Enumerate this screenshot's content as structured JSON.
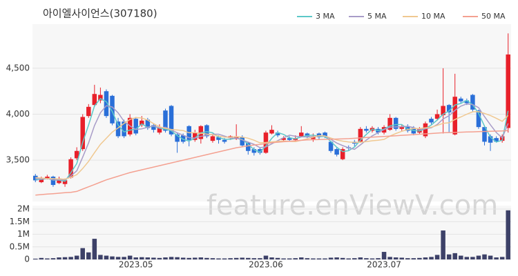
{
  "watermark": "feature.enViewV.com",
  "chart_data": [
    {
      "type": "candlestick",
      "title": "아이엘사이언스(307180)",
      "legend": "top-right",
      "up_color": "#e8202a",
      "down_color": "#2a6fd8",
      "categories": [
        null,
        null,
        null,
        null,
        null,
        null,
        null,
        null,
        null,
        null,
        null,
        null,
        null,
        null,
        null,
        null,
        null,
        "2023.05",
        null,
        null,
        null,
        null,
        null,
        null,
        null,
        null,
        null,
        null,
        null,
        null,
        null,
        null,
        null,
        null,
        null,
        null,
        null,
        null,
        null,
        "2023.06",
        null,
        null,
        null,
        null,
        null,
        null,
        null,
        null,
        null,
        null,
        null,
        null,
        null,
        null,
        null,
        null,
        null,
        null,
        null,
        "2023.07",
        null,
        null,
        null,
        null,
        null,
        null,
        null,
        null,
        null,
        null,
        null,
        null,
        null,
        null,
        null,
        null,
        null,
        null,
        null,
        null,
        null
      ],
      "open": [
        3330,
        3260,
        3300,
        3320,
        3250,
        3240,
        3310,
        3520,
        3620,
        3980,
        4100,
        4150,
        4250,
        4200,
        3920,
        3920,
        3780,
        3950,
        3880,
        3940,
        3880,
        3800,
        4040,
        4090,
        3780,
        3770,
        3870,
        3720,
        3730,
        3880,
        3710,
        3750,
        3720,
        3740,
        3730,
        3750,
        3690,
        3620,
        3620,
        3580,
        3790,
        3800,
        3720,
        3740,
        3720,
        3760,
        3790,
        3730,
        3790,
        3800,
        3700,
        3620,
        3510,
        3640,
        3700,
        3700,
        3840,
        3820,
        3840,
        3800,
        3830,
        3960,
        3840,
        3870,
        3850,
        3800,
        3760,
        3950,
        3950,
        3990,
        4100,
        3780,
        4170,
        4150,
        4210,
        4040,
        3860,
        3760,
        3740,
        3710,
        3850
      ],
      "high": [
        3350,
        3320,
        3340,
        3330,
        3320,
        3300,
        3530,
        3640,
        4000,
        4110,
        4320,
        4290,
        4270,
        4210,
        3960,
        3940,
        4000,
        3970,
        3980,
        3960,
        3900,
        3890,
        4060,
        4100,
        3800,
        3790,
        3880,
        3830,
        3880,
        3890,
        3780,
        3770,
        3740,
        3770,
        3890,
        3770,
        3700,
        3640,
        3640,
        3820,
        3880,
        3820,
        3760,
        3760,
        3770,
        3870,
        3800,
        3790,
        3800,
        3810,
        3710,
        3640,
        3640,
        3660,
        3720,
        3860,
        3870,
        3870,
        3860,
        3880,
        4000,
        3970,
        3880,
        3890,
        3870,
        3860,
        3920,
        3970,
        4050,
        4500,
        4110,
        4440,
        4190,
        4170,
        4220,
        4050,
        3880,
        3780,
        3760,
        3780,
        4880
      ],
      "low": [
        3260,
        3250,
        3290,
        3210,
        3240,
        3210,
        3300,
        3500,
        3600,
        3960,
        4080,
        4120,
        3960,
        3880,
        3740,
        3740,
        3760,
        3770,
        3860,
        3830,
        3800,
        3780,
        3800,
        3760,
        3580,
        3680,
        3650,
        3700,
        3680,
        3740,
        3690,
        3680,
        3680,
        3720,
        3720,
        3640,
        3560,
        3550,
        3560,
        3570,
        3780,
        3750,
        3700,
        3700,
        3710,
        3750,
        3740,
        3700,
        3730,
        3740,
        3580,
        3540,
        3500,
        3610,
        3650,
        3690,
        3800,
        3800,
        3780,
        3780,
        3820,
        3820,
        3820,
        3800,
        3770,
        3780,
        3740,
        3890,
        3930,
        3790,
        3800,
        3770,
        4120,
        4100,
        4030,
        3840,
        3660,
        3600,
        3690,
        3690,
        3800
      ],
      "close": [
        3280,
        3300,
        3320,
        3230,
        3300,
        3280,
        3510,
        3600,
        3970,
        4080,
        4220,
        4210,
        3980,
        3900,
        3760,
        3760,
        3960,
        3790,
        3930,
        3850,
        3830,
        3860,
        3820,
        3780,
        3700,
        3700,
        3720,
        3800,
        3870,
        3760,
        3760,
        3720,
        3700,
        3760,
        3760,
        3660,
        3600,
        3580,
        3580,
        3800,
        3830,
        3770,
        3740,
        3720,
        3740,
        3800,
        3760,
        3760,
        3750,
        3760,
        3600,
        3560,
        3620,
        3630,
        3680,
        3840,
        3820,
        3850,
        3800,
        3860,
        3960,
        3840,
        3860,
        3820,
        3790,
        3840,
        3900,
        3910,
        4000,
        4090,
        4020,
        4190,
        4140,
        4120,
        4050,
        3860,
        3700,
        3690,
        3700,
        3760,
        4650
      ],
      "series": [
        {
          "name": "3 MA",
          "color": "#5cc8c8",
          "values": [
            3290,
            3290,
            3300,
            3283,
            3283,
            3270,
            3363,
            3463,
            3693,
            3883,
            4090,
            4170,
            4137,
            4030,
            3880,
            3807,
            3827,
            3837,
            3893,
            3857,
            3870,
            3847,
            3837,
            3820,
            3767,
            3727,
            3707,
            3740,
            3797,
            3810,
            3797,
            3747,
            3727,
            3727,
            3740,
            3727,
            3673,
            3613,
            3587,
            3653,
            3737,
            3800,
            3780,
            3743,
            3733,
            3753,
            3767,
            3773,
            3757,
            3757,
            3703,
            3640,
            3593,
            3603,
            3643,
            3717,
            3780,
            3837,
            3823,
            3837,
            3873,
            3887,
            3887,
            3840,
            3823,
            3817,
            3843,
            3883,
            3937,
            4000,
            4037,
            4100,
            4117,
            4150,
            4103,
            4010,
            3870,
            3750,
            3697,
            3717,
            4037
          ]
        },
        {
          "name": "5 MA",
          "color": "#a89cc8",
          "values": [
            3300,
            3295,
            3300,
            3285,
            3286,
            3286,
            3328,
            3384,
            3532,
            3688,
            3876,
            4016,
            4092,
            4078,
            4014,
            3922,
            3872,
            3834,
            3840,
            3858,
            3872,
            3852,
            3858,
            3828,
            3798,
            3772,
            3744,
            3740,
            3758,
            3770,
            3782,
            3782,
            3762,
            3740,
            3740,
            3720,
            3696,
            3672,
            3636,
            3644,
            3678,
            3712,
            3744,
            3772,
            3760,
            3754,
            3752,
            3756,
            3762,
            3766,
            3726,
            3686,
            3658,
            3634,
            3618,
            3666,
            3718,
            3764,
            3798,
            3834,
            3858,
            3862,
            3864,
            3868,
            3854,
            3830,
            3842,
            3852,
            3888,
            3948,
            3984,
            4042,
            4088,
            4112,
            4104,
            4072,
            3974,
            3884,
            3800,
            3742,
            3900
          ]
        },
        {
          "name": "10 MA",
          "color": "#f0c890",
          "values": [
            3310,
            3305,
            3300,
            3300,
            3295,
            3293,
            3312,
            3342,
            3408,
            3487,
            3581,
            3672,
            3738,
            3805,
            3851,
            3899,
            3944,
            3963,
            3959,
            3936,
            3897,
            3862,
            3846,
            3834,
            3828,
            3822,
            3798,
            3799,
            3793,
            3784,
            3777,
            3763,
            3751,
            3749,
            3755,
            3751,
            3739,
            3717,
            3688,
            3692,
            3699,
            3704,
            3708,
            3704,
            3702,
            3716,
            3732,
            3750,
            3767,
            3763,
            3740,
            3719,
            3707,
            3698,
            3692,
            3696,
            3702,
            3711,
            3716,
            3726,
            3762,
            3790,
            3814,
            3833,
            3844,
            3844,
            3852,
            3858,
            3878,
            3901,
            3907,
            3942,
            3970,
            4000,
            4026,
            4028,
            4008,
            3986,
            3956,
            3923,
            3986
          ]
        },
        {
          "name": "50 MA",
          "color": "#f4a090",
          "values": [
            3120,
            3125,
            3130,
            3135,
            3140,
            3145,
            3150,
            3160,
            3185,
            3210,
            3235,
            3260,
            3285,
            3305,
            3325,
            3345,
            3365,
            3380,
            3395,
            3410,
            3425,
            3440,
            3455,
            3470,
            3485,
            3500,
            3515,
            3530,
            3545,
            3560,
            3575,
            3590,
            3605,
            3620,
            3635,
            3645,
            3655,
            3665,
            3672,
            3680,
            3690,
            3695,
            3700,
            3705,
            3710,
            3715,
            3720,
            3722,
            3724,
            3726,
            3728,
            3730,
            3732,
            3734,
            3738,
            3742,
            3746,
            3750,
            3754,
            3758,
            3762,
            3766,
            3770,
            3774,
            3778,
            3782,
            3786,
            3790,
            3794,
            3798,
            3800,
            3802,
            3804,
            3806,
            3808,
            3810,
            3812,
            3814,
            3816,
            3818,
            3822
          ]
        }
      ],
      "ylim": [
        3050,
        4980
      ],
      "yticks": [
        {
          "value": 3500,
          "label": "3,500"
        },
        {
          "value": 4000,
          "label": "4,000"
        },
        {
          "value": 4500,
          "label": "4,500"
        }
      ]
    },
    {
      "type": "bar",
      "color": "#3d4168",
      "values": [
        30000,
        60000,
        40000,
        50000,
        80000,
        90000,
        100000,
        150000,
        450000,
        280000,
        820000,
        180000,
        150000,
        120000,
        100000,
        100000,
        150000,
        80000,
        90000,
        80000,
        70000,
        60000,
        80000,
        100000,
        90000,
        70000,
        60000,
        70000,
        80000,
        60000,
        50000,
        40000,
        40000,
        50000,
        60000,
        70000,
        60000,
        50000,
        50000,
        150000,
        80000,
        60000,
        40000,
        40000,
        50000,
        80000,
        50000,
        40000,
        40000,
        40000,
        70000,
        80000,
        60000,
        40000,
        50000,
        80000,
        50000,
        40000,
        50000,
        300000,
        100000,
        80000,
        70000,
        50000,
        50000,
        60000,
        80000,
        100000,
        180000,
        1150000,
        200000,
        250000,
        150000,
        100000,
        100000,
        150000,
        200000,
        150000,
        80000,
        100000,
        1950000
      ],
      "ylim": [
        0,
        2000000
      ],
      "yticks": [
        0,
        {
          "value": 500000,
          "label": "0.5M"
        },
        {
          "value": 1000000,
          "label": "1M"
        },
        {
          "value": 1500000,
          "label": "1.5M"
        },
        {
          "value": 2000000,
          "label": "2M"
        }
      ]
    }
  ]
}
